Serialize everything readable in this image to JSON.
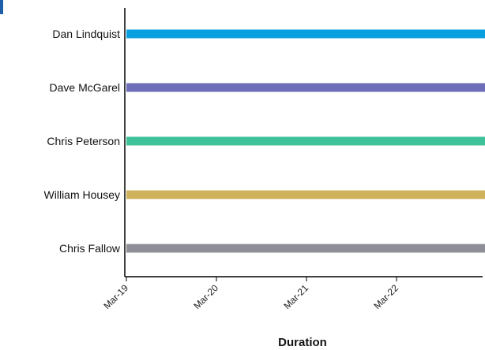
{
  "chart_data": {
    "type": "bar",
    "orientation": "horizontal",
    "categories": [
      "Dan Lindquist",
      "Dave McGarel",
      "Chris Peterson",
      "William Housey",
      "Chris Fallow"
    ],
    "series": [
      {
        "values": [
          {
            "start": "Mar-19",
            "end": "Mar-23"
          },
          {
            "start": "Mar-19",
            "end": "Mar-23"
          },
          {
            "start": "Mar-19",
            "end": "Mar-23"
          },
          {
            "start": "Mar-19",
            "end": "Mar-23"
          },
          {
            "start": "Mar-19",
            "end": "Mar-23"
          }
        ]
      }
    ],
    "bar_colors": [
      "#0aa0e0",
      "#6e6eb8",
      "#3fc29a",
      "#cfb25c",
      "#8e8f96"
    ],
    "x_ticks": [
      "Mar-19",
      "Mar-20",
      "Mar-21",
      "Mar-22"
    ],
    "xlabel": "Duration",
    "ylabel": "",
    "title": "",
    "grid": false,
    "legend": "none"
  }
}
